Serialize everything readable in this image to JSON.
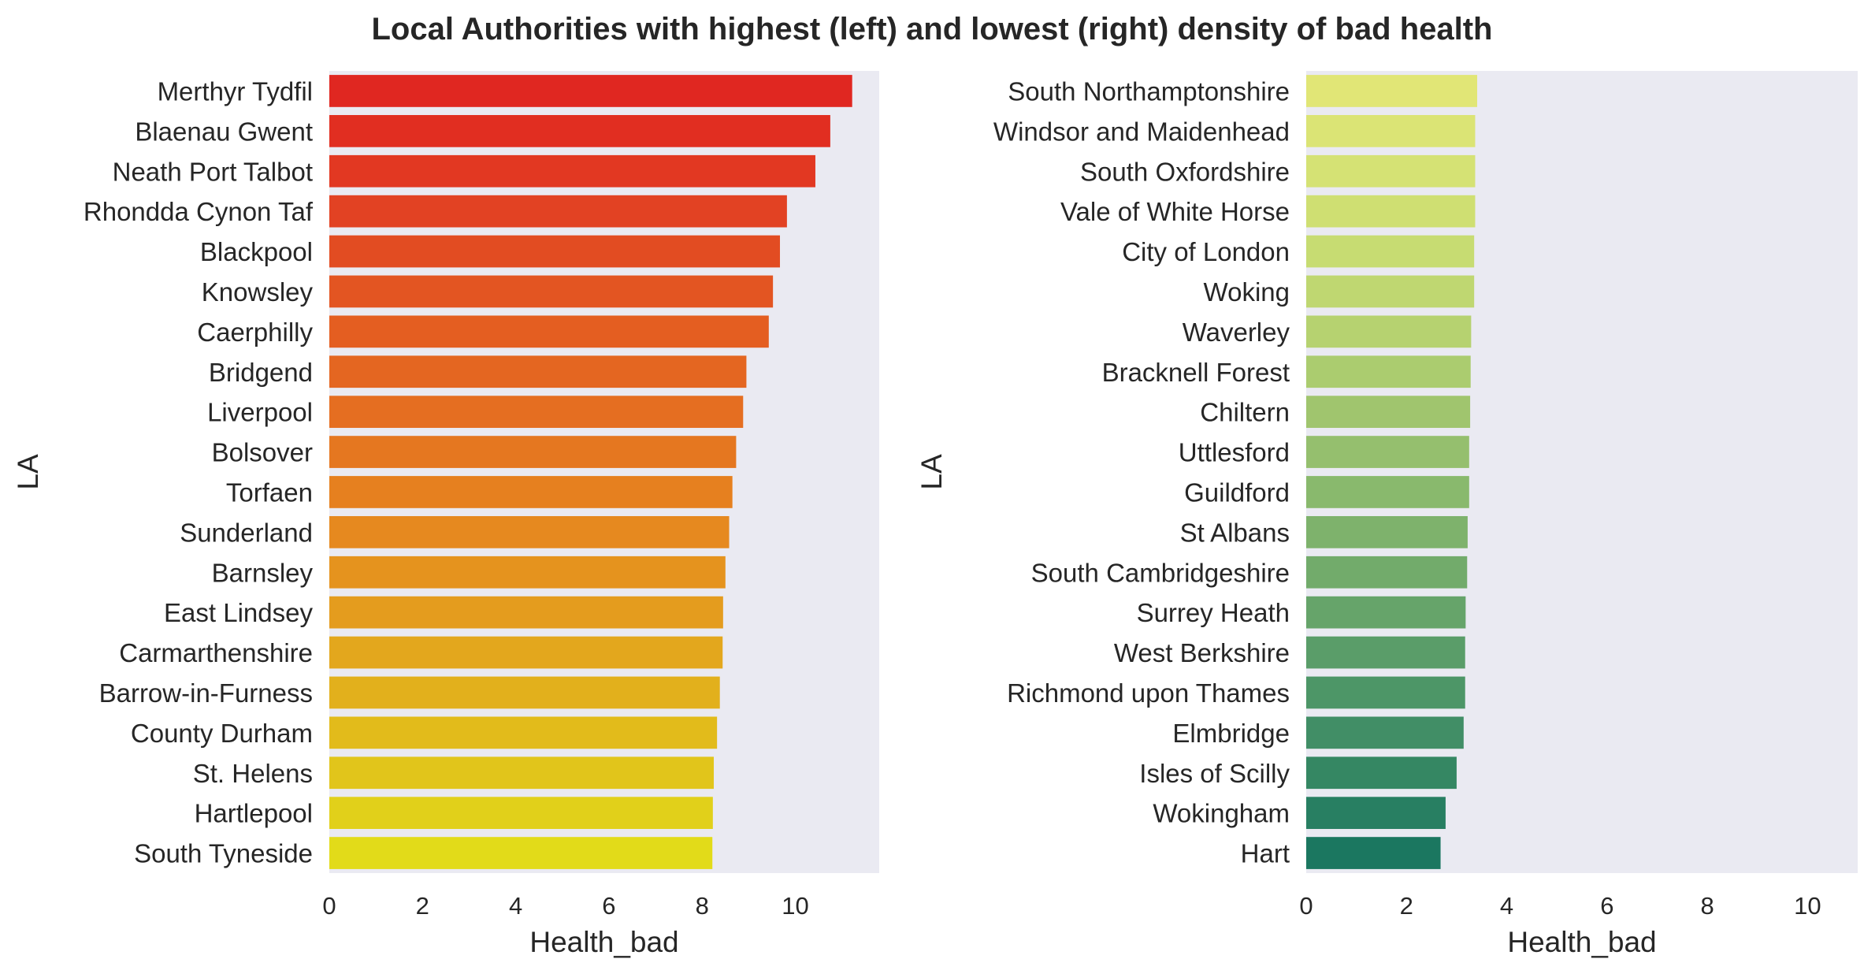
{
  "title": "Local Authorities with highest (left) and lowest (right) density of bad health",
  "chart_data": [
    {
      "type": "bar",
      "orientation": "horizontal",
      "xlabel": "Health_bad",
      "ylabel": "LA",
      "xlim": [
        0,
        11.8
      ],
      "xticks": [
        "0",
        "2",
        "4",
        "6",
        "8",
        "10"
      ],
      "grid": false,
      "palette": "red-to-yellow",
      "categories": [
        "Merthyr Tydfil",
        "Blaenau Gwent",
        "Neath Port Talbot",
        "Rhondda Cynon Taf",
        "Blackpool",
        "Knowsley",
        "Caerphilly",
        "Bridgend",
        "Liverpool",
        "Bolsover",
        "Torfaen",
        "Sunderland",
        "Barnsley",
        "East Lindsey",
        "Carmarthenshire",
        "Barrow-in-Furness",
        "County Durham",
        "St. Helens",
        "Hartlepool",
        "South Tyneside"
      ],
      "values": [
        11.22,
        10.75,
        10.43,
        9.82,
        9.67,
        9.52,
        9.43,
        8.95,
        8.88,
        8.73,
        8.65,
        8.58,
        8.5,
        8.45,
        8.44,
        8.38,
        8.32,
        8.25,
        8.23,
        8.22
      ],
      "colors": [
        "#e02721",
        "#e12e21",
        "#e23822",
        "#e24223",
        "#e24c22",
        "#e35522",
        "#e45e21",
        "#e46621",
        "#e56e21",
        "#e57720",
        "#e6801f",
        "#e6891f",
        "#e5931e",
        "#e49c1e",
        "#e3a71d",
        "#e2b01c",
        "#e2bb1b",
        "#e1c51b",
        "#e1d01a",
        "#e2db19"
      ]
    },
    {
      "type": "bar",
      "orientation": "horizontal",
      "xlabel": "Health_bad",
      "ylabel": "LA",
      "xlim": [
        0,
        11.0
      ],
      "xticks": [
        "0",
        "2",
        "4",
        "6",
        "8",
        "10"
      ],
      "grid": false,
      "palette": "yellow-green",
      "categories": [
        "South Northamptonshire",
        "Windsor and Maidenhead",
        "South Oxfordshire",
        "Vale of White Horse",
        "City of London",
        "Woking",
        "Waverley",
        "Bracknell Forest",
        "Chiltern",
        "Uttlesford",
        "Guildford",
        "St Albans",
        "South Cambridgeshire",
        "Surrey Heath",
        "West Berkshire",
        "Richmond upon Thames",
        "Elmbridge",
        "Isles of Scilly",
        "Wokingham",
        "Hart"
      ],
      "values": [
        3.41,
        3.37,
        3.37,
        3.37,
        3.35,
        3.35,
        3.29,
        3.28,
        3.27,
        3.25,
        3.25,
        3.22,
        3.21,
        3.18,
        3.17,
        3.17,
        3.14,
        3.0,
        2.78,
        2.68
      ],
      "colors": [
        "#e1e676",
        "#dbe475",
        "#d5e274",
        "#cfdf72",
        "#c7dc72",
        "#bfd771",
        "#b6d270",
        "#abcc6f",
        "#a0c56e",
        "#95bf6e",
        "#89b96d",
        "#7eb26c",
        "#72ab6b",
        "#66a46a",
        "#5a9d69",
        "#4d9667",
        "#418e66",
        "#358763",
        "#287f62",
        "#1b7760"
      ]
    }
  ]
}
